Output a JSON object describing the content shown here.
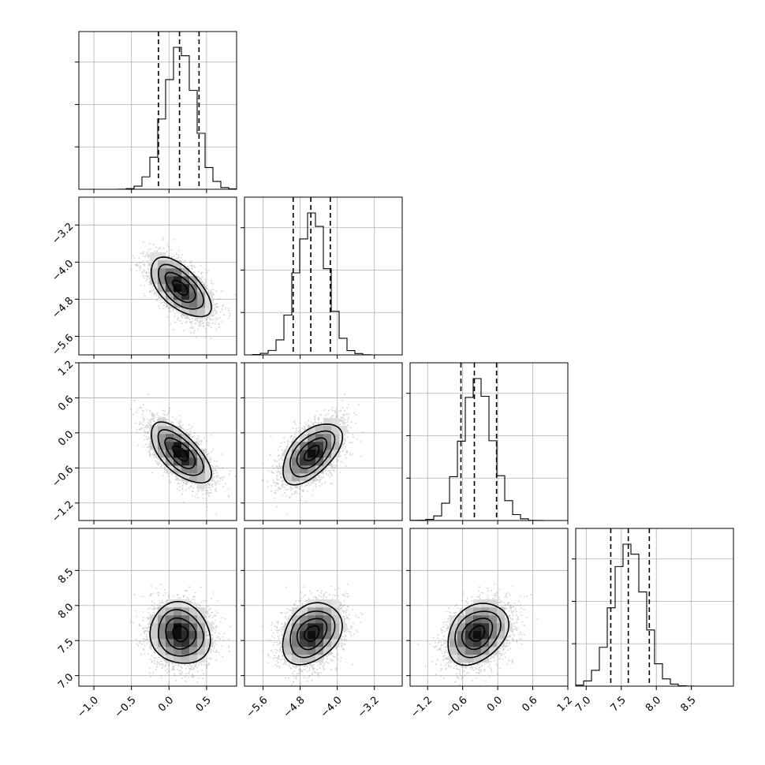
{
  "chart_data": {
    "type": "corner",
    "grid": true,
    "parameters": [
      {
        "index": 0,
        "range": [
          -1.2,
          0.9
        ],
        "ticks": [
          -1.0,
          -0.5,
          0.0,
          0.5
        ],
        "tick_labels": [
          "−1.0",
          "−0.5",
          "0.0",
          "0.5"
        ],
        "mean": 0.15,
        "sd": 0.2,
        "quantiles": [
          -0.14,
          0.14,
          0.4
        ]
      },
      {
        "index": 1,
        "range": [
          -6.0,
          -2.6
        ],
        "ticks": [
          -5.6,
          -4.8,
          -4.0,
          -3.2
        ],
        "tick_labels": [
          "−5.6",
          "−4.8",
          "−4.0",
          "−3.2"
        ],
        "mean": -4.55,
        "sd": 0.32,
        "quantiles": [
          -4.95,
          -4.57,
          -4.15
        ]
      },
      {
        "index": 2,
        "range": [
          -1.5,
          1.2
        ],
        "ticks": [
          -1.2,
          -0.6,
          0.0,
          0.6,
          1.2
        ],
        "tick_labels": [
          "−1.2",
          "−0.6",
          "0.0",
          "0.6",
          "1.2"
        ],
        "mean": -0.35,
        "sd": 0.26,
        "quantiles": [
          -0.63,
          -0.4,
          -0.02
        ]
      },
      {
        "index": 3,
        "range": [
          6.85,
          9.1
        ],
        "ticks": [
          7.0,
          7.5,
          8.0,
          8.5
        ],
        "tick_labels": [
          "7.0",
          "7.5",
          "8.0",
          "8.5"
        ],
        "mean": 7.6,
        "sd": 0.22,
        "quantiles": [
          7.35,
          7.6,
          7.9
        ]
      }
    ],
    "correlations": {
      "1-0": -0.6,
      "2-0": -0.65,
      "2-1": 0.55,
      "3-0": -0.1,
      "3-1": 0.3,
      "3-2": 0.3
    },
    "sample_count": 10000
  }
}
